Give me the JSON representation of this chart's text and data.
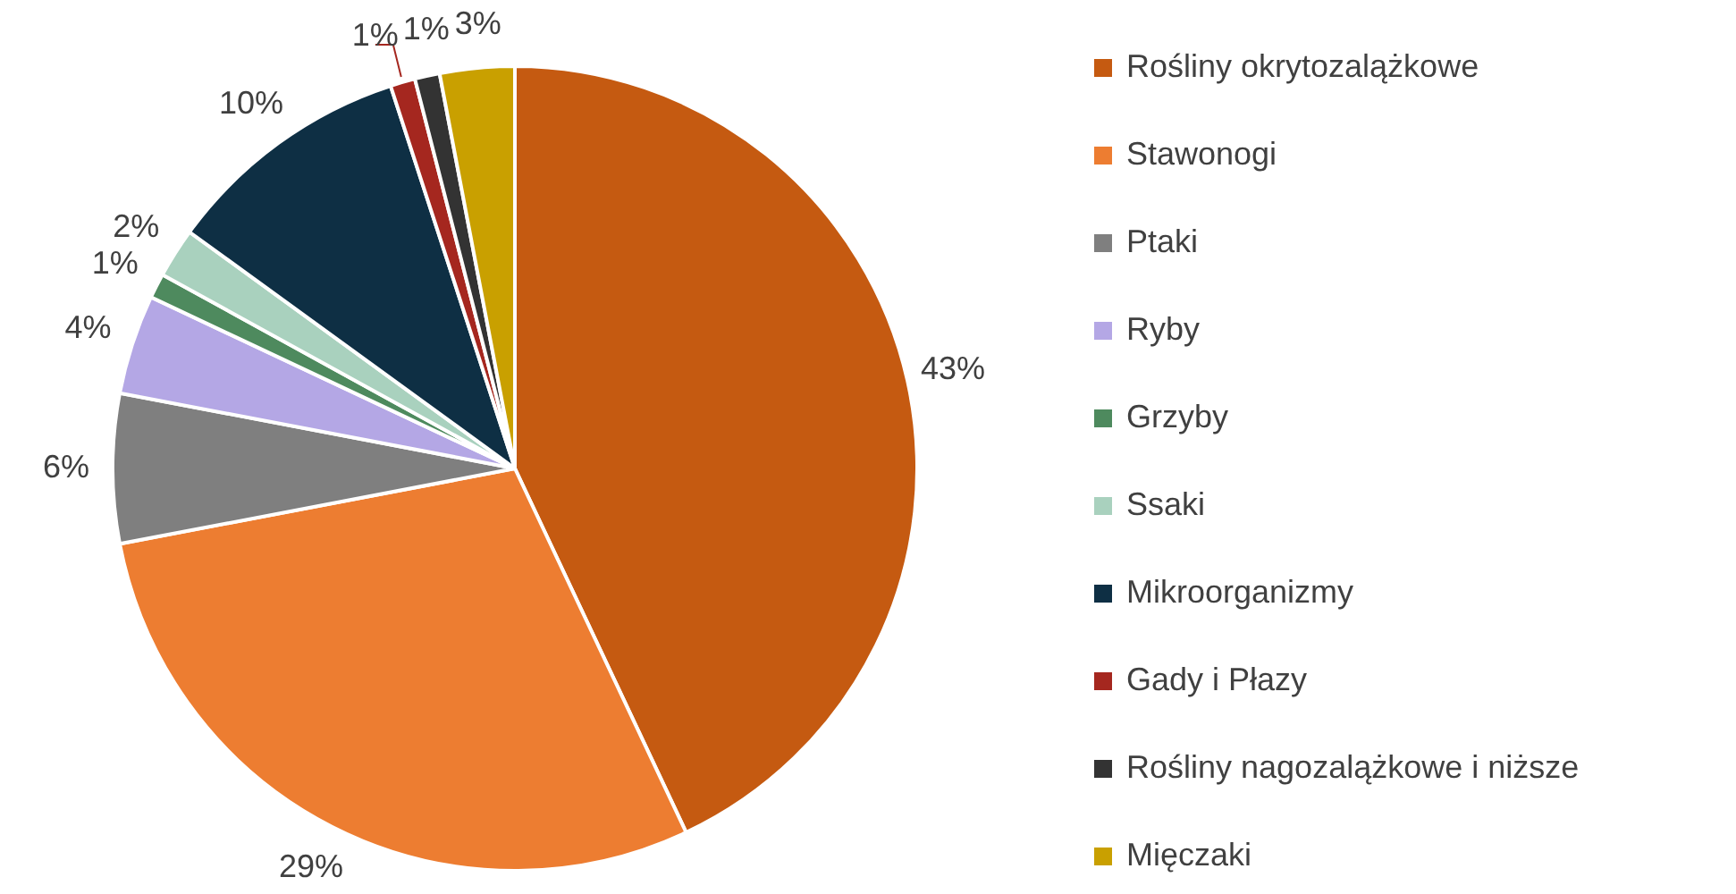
{
  "chart_data": {
    "type": "pie",
    "categories": [
      "Rośliny okrytozalążkowe",
      "Stawonogi",
      "Ptaki",
      "Ryby",
      "Grzyby",
      "Ssaki",
      "Mikroorganizmy",
      "Gady i Płazy",
      "Rośliny nagozalążkowe i niższe",
      "Mięczaki"
    ],
    "values": [
      43,
      29,
      6,
      4,
      1,
      2,
      10,
      1,
      1,
      3
    ],
    "colors": [
      "#c55a11",
      "#ed7d31",
      "#7f7f7f",
      "#b4a7e5",
      "#4e8a5e",
      "#a9d1be",
      "#0e2f44",
      "#a5271f",
      "#333333",
      "#c9a000"
    ],
    "value_labels": [
      "43%",
      "29%",
      "6%",
      "4%",
      "1%",
      "2%",
      "10%",
      "1%",
      "1%",
      "3%"
    ],
    "legend": "right"
  }
}
